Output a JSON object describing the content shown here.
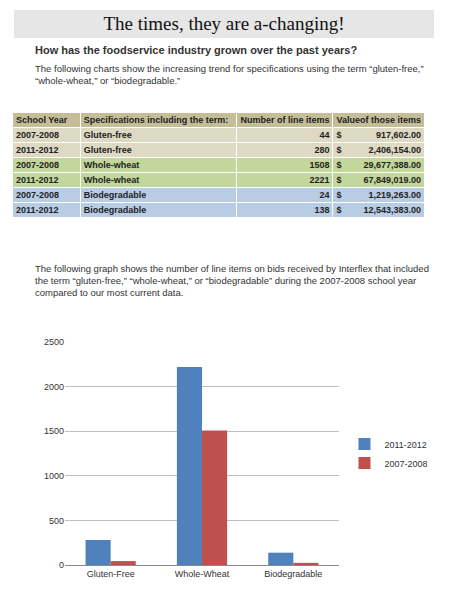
{
  "title": "The times, they are a-changing!",
  "question": "How has the foodservice industry grown over the past years?",
  "intro": "The following charts show the increasing trend for specifications using the term “gluten-free,” “whole-wheat,” or “biodegradable.”",
  "table": {
    "header": [
      "School Year",
      "Specifications including the term:",
      "Number of line items",
      "Value of those items"
    ],
    "rows": [
      [
        "2007-2008",
        "Gluten-free",
        "44",
        "$ 917,602.00"
      ],
      [
        "2011-2012",
        "Gluten-free",
        "280",
        "$ 2,406,154.00"
      ],
      [
        "2007-2008",
        "Whole-wheat",
        "1508",
        "$ 29,677,388.00"
      ],
      [
        "2011-2012",
        "Whole-wheat",
        "2221",
        "$ 67,849,019.00"
      ],
      [
        "2007-2008",
        "Biodegradable",
        "24",
        "$ 1,219,263.00"
      ],
      [
        "2011-2012",
        "Biodegradable",
        "138",
        "$ 12,543,383.00"
      ]
    ]
  },
  "caption": "The following graph shows the number of line items on bids received by Interflex that included the term “gluten-free,” “whole-wheat,” or “biodegradable” during the 2007-2008 school year compared to our most current data.",
  "chart_data": {
    "type": "bar",
    "categories": [
      "Gluten-Free",
      "Whole-Wheat",
      "Biodegradable"
    ],
    "series": [
      {
        "name": "2011-2012",
        "color": "#4f81bd",
        "values": [
          280,
          2221,
          138
        ]
      },
      {
        "name": "2007-2008",
        "color": "#c0504d",
        "values": [
          44,
          1508,
          24
        ]
      }
    ],
    "ylim": [
      0,
      2500
    ],
    "yticks": [
      0,
      500,
      1000,
      1500,
      2000,
      2500
    ],
    "grid": true,
    "legend": "right"
  }
}
